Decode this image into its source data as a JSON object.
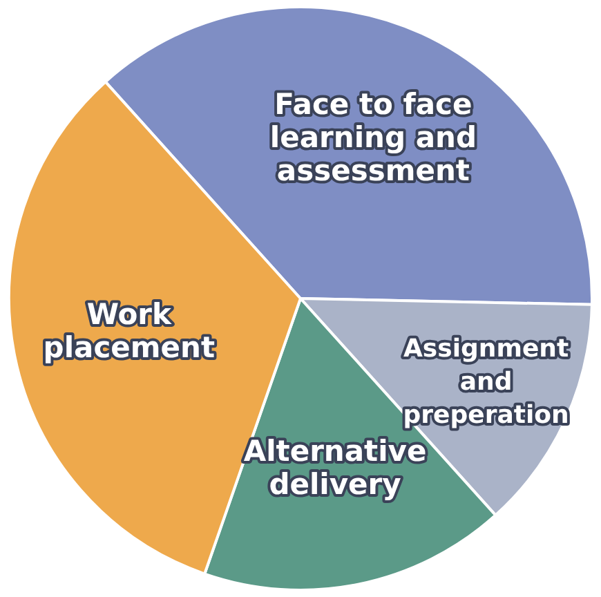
{
  "chart_data": {
    "type": "pie",
    "categories": [
      "Face to face learning and assessment",
      "Assignment and preperation",
      "Alternative delivery",
      "Work placement"
    ],
    "values": [
      37,
      13,
      17,
      33
    ],
    "colors": [
      "#7f8ec4",
      "#aab3c8",
      "#5b9a88",
      "#eea94c"
    ],
    "legend": false
  }
}
